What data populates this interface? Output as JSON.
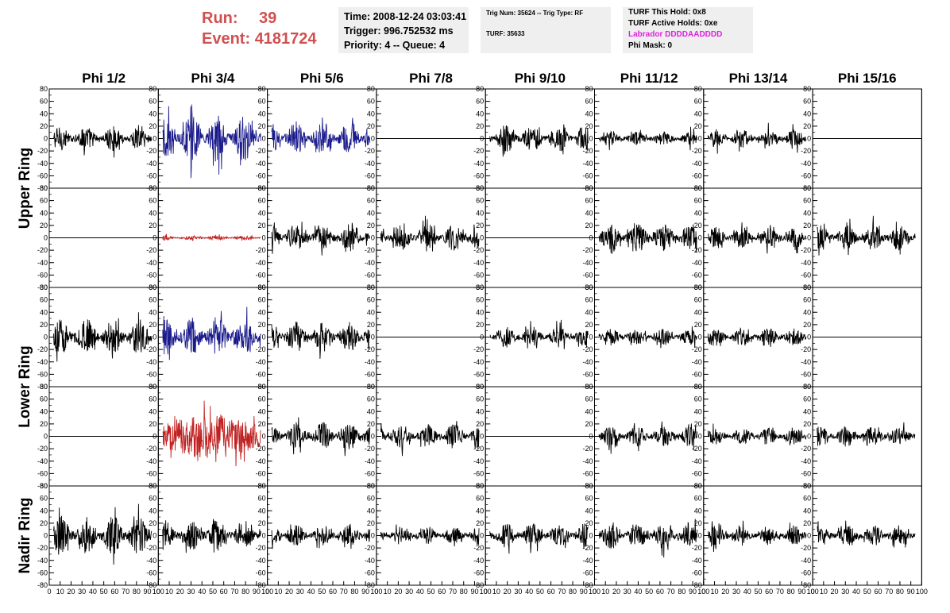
{
  "header": {
    "run_label": "Run:",
    "run_value": "39",
    "event_label": "Event:",
    "event_value": "4181724"
  },
  "info_box_1": {
    "time": "Time: 2008-12-24 03:03:41",
    "trigger": "Trigger: 996.752532 ms",
    "priority": "Priority: 4 -- Queue: 4"
  },
  "info_box_2": {
    "trig": "Trig Num: 35624 -- Trig Type: RF",
    "turf": "TURF: 35633"
  },
  "info_box_3": {
    "this_hold": "TURF This Hold: 0x8",
    "active_holds": "TURF Active Holds: 0xe",
    "labrador": "Labrador DDDDAADDDD",
    "phi_mask": "Phi Mask: 0"
  },
  "colors": {
    "header_red": "#d05050",
    "trace_black": "#000000",
    "trace_blue": "#1a1a8c",
    "trace_red": "#c02020",
    "magenta": "#e020e0",
    "info_bg": "#efefef"
  },
  "chart_data": {
    "type": "line",
    "columns": [
      "Phi 1/2",
      "Phi 3/4",
      "Phi 5/6",
      "Phi 7/8",
      "Phi 9/10",
      "Phi 11/12",
      "Phi 13/14",
      "Phi 15/16"
    ],
    "ring_labels": [
      "Upper Ring",
      "Lower Ring",
      "Nadir Ring"
    ],
    "y_ticks": [
      "80",
      "60",
      "40",
      "20",
      "0",
      "-20",
      "-40",
      "-60",
      "-80"
    ],
    "x_ticks": [
      "0",
      "10",
      "20",
      "30",
      "40",
      "50",
      "60",
      "70",
      "80",
      "90",
      "100"
    ],
    "xlim": [
      0,
      100
    ],
    "ylim": [
      -80,
      80
    ],
    "panels": [
      [
        {
          "style": "black",
          "amp": 16
        },
        {
          "style": "blue",
          "amp": 30
        },
        {
          "style": "blue",
          "amp": 22
        },
        {
          "style": "flat",
          "amp": 0
        },
        {
          "style": "black",
          "amp": 18
        },
        {
          "style": "black",
          "amp": 9
        },
        {
          "style": "black",
          "amp": 12
        },
        {
          "style": "flat",
          "amp": 0
        }
      ],
      [
        {
          "style": "flat",
          "amp": 0
        },
        {
          "style": "red",
          "amp": 3
        },
        {
          "style": "black",
          "amp": 18
        },
        {
          "style": "black",
          "amp": 18
        },
        {
          "style": "flat",
          "amp": 0
        },
        {
          "style": "black",
          "amp": 20
        },
        {
          "style": "black",
          "amp": 14
        },
        {
          "style": "black",
          "amp": 17
        }
      ],
      [
        {
          "style": "black",
          "amp": 24
        },
        {
          "style": "blue",
          "amp": 26
        },
        {
          "style": "black",
          "amp": 20
        },
        {
          "style": "flat",
          "amp": 0
        },
        {
          "style": "black",
          "amp": 14
        },
        {
          "style": "black",
          "amp": 11
        },
        {
          "style": "black",
          "amp": 12
        },
        {
          "style": "flat",
          "amp": 0
        }
      ],
      [
        {
          "style": "flat",
          "amp": 0
        },
        {
          "style": "red",
          "amp": 30
        },
        {
          "style": "black",
          "amp": 18
        },
        {
          "style": "black",
          "amp": 16
        },
        {
          "style": "flat",
          "amp": 0
        },
        {
          "style": "black",
          "amp": 14
        },
        {
          "style": "black",
          "amp": 11
        },
        {
          "style": "black",
          "amp": 14
        }
      ],
      [
        {
          "style": "black",
          "amp": 26
        },
        {
          "style": "black",
          "amp": 20
        },
        {
          "style": "black",
          "amp": 14
        },
        {
          "style": "black",
          "amp": 12
        },
        {
          "style": "black",
          "amp": 16
        },
        {
          "style": "black",
          "amp": 18
        },
        {
          "style": "black",
          "amp": 13
        },
        {
          "style": "black",
          "amp": 14
        }
      ]
    ]
  }
}
